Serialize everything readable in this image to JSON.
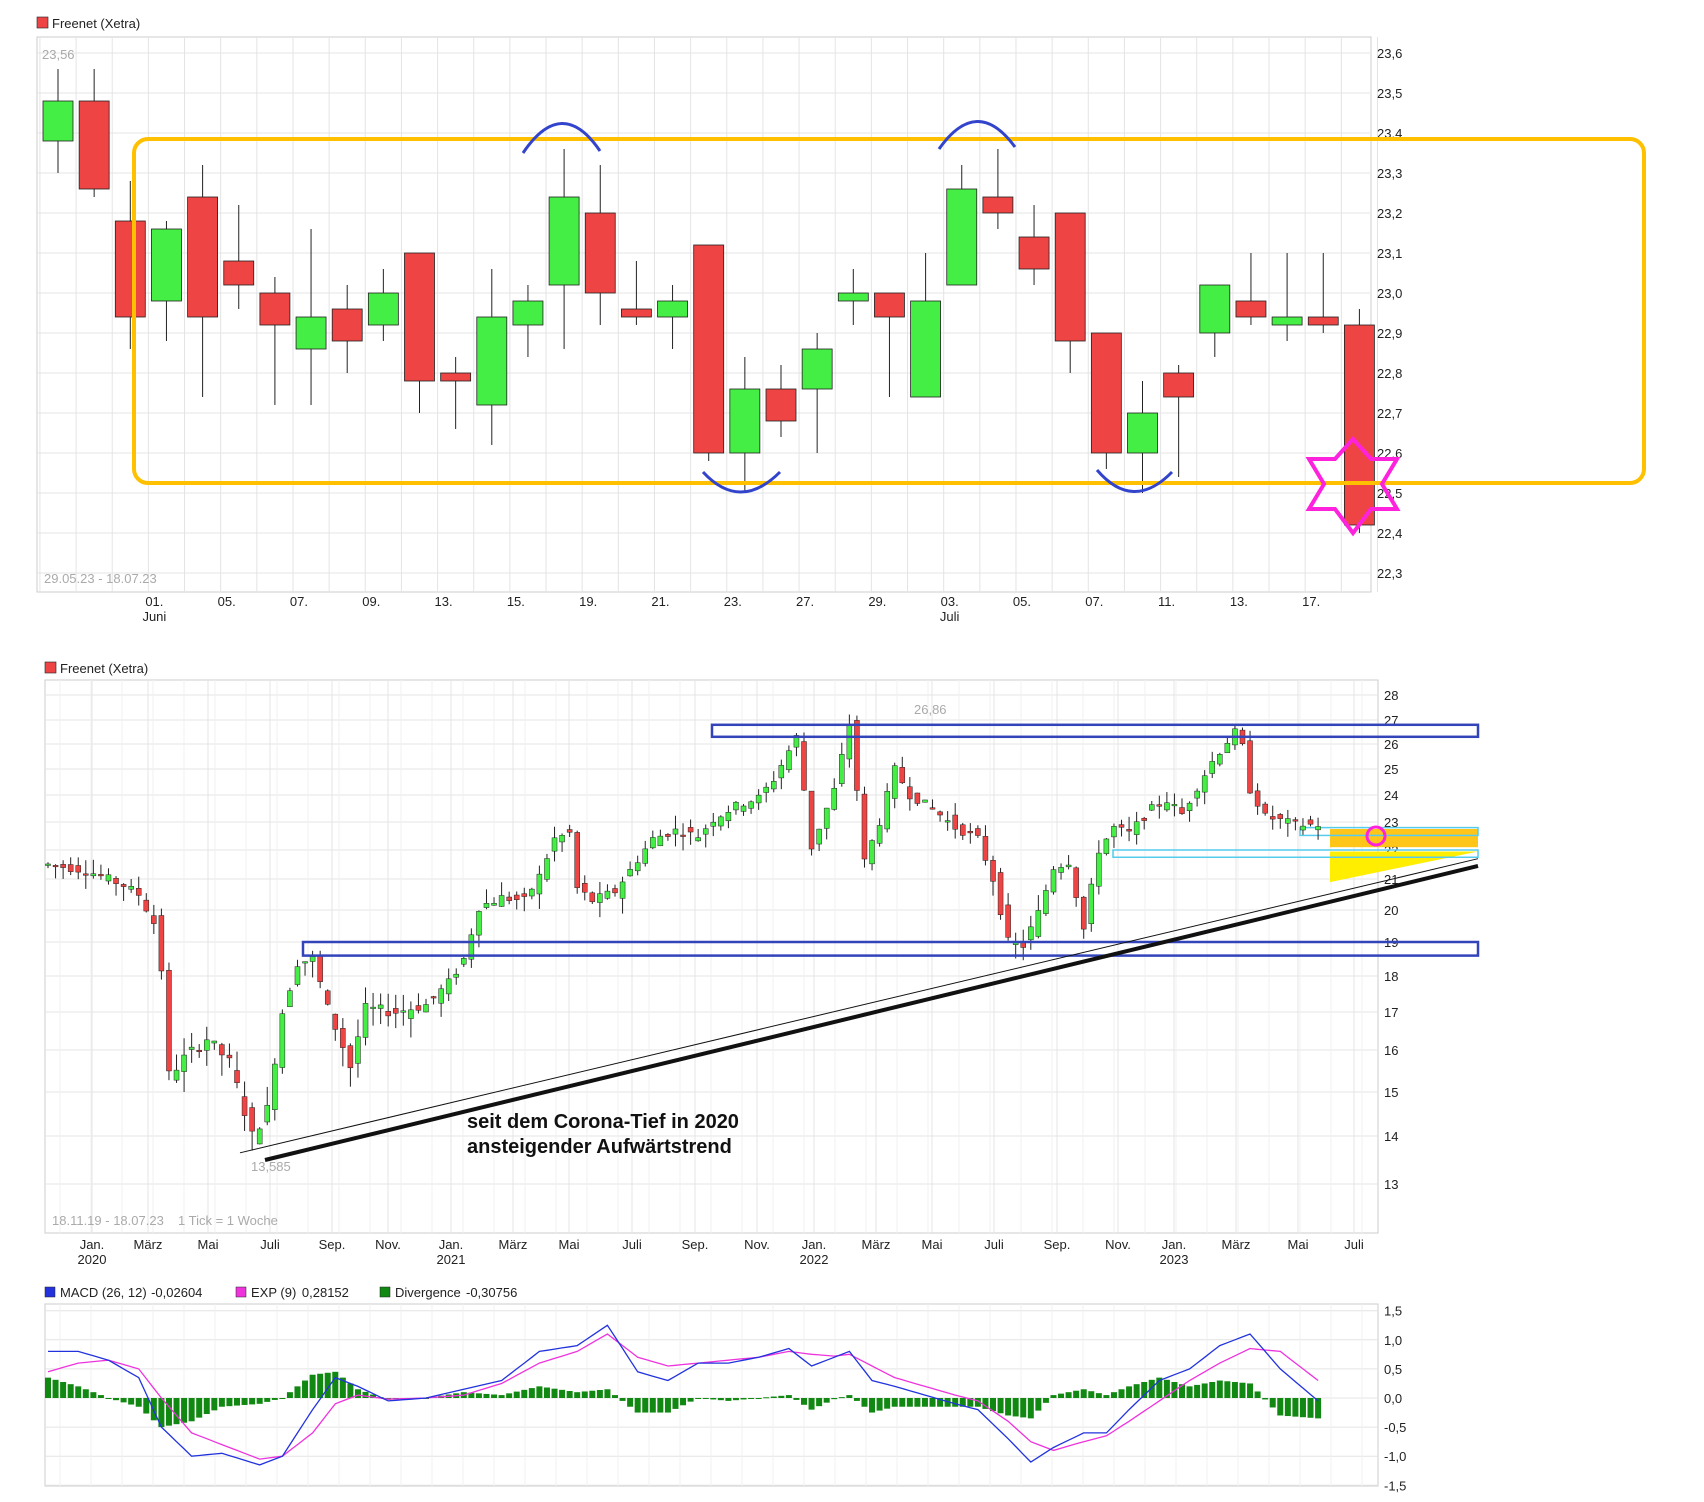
{
  "colors": {
    "up": "#44ee44",
    "down": "#ee4444",
    "grid": "#e4e4e4",
    "frame": "#cccccc",
    "range_box": "#ffc000",
    "arcs": "#3344cc",
    "star": "#ff22dd",
    "channel": "#3344bb",
    "cyan": "#55ccee",
    "trend": "#111111",
    "zone_orange": "#ffc000",
    "zone_yellow": "#ffee00",
    "macd": "#2233dd",
    "exp": "#ee33dd",
    "divergence": "#118811"
  },
  "chart_data": [
    {
      "type": "candlestick",
      "title": "Freenet (Xetra)",
      "period": "29.05.23 - 18.07.23",
      "max_label": "23,56",
      "ylim": [
        22.22,
        23.62
      ],
      "yticks": [
        "23,6",
        "23,5",
        "23,4",
        "23,3",
        "23,2",
        "23,1",
        "23,0",
        "22,9",
        "22,8",
        "22,7",
        "22,6",
        "22,5",
        "22,4",
        "22,3"
      ],
      "xticks": [
        {
          "i": 3,
          "label": "01.",
          "sub": "Juni"
        },
        {
          "i": 5,
          "label": "05."
        },
        {
          "i": 7,
          "label": "07."
        },
        {
          "i": 9,
          "label": "09."
        },
        {
          "i": 11,
          "label": "13."
        },
        {
          "i": 13,
          "label": "15."
        },
        {
          "i": 15,
          "label": "19."
        },
        {
          "i": 17,
          "label": "21."
        },
        {
          "i": 19,
          "label": "23."
        },
        {
          "i": 21,
          "label": "27."
        },
        {
          "i": 23,
          "label": "29."
        },
        {
          "i": 25,
          "label": "03.",
          "sub": "Juli"
        },
        {
          "i": 27,
          "label": "05."
        },
        {
          "i": 29,
          "label": "07."
        },
        {
          "i": 31,
          "label": "11."
        },
        {
          "i": 33,
          "label": "13."
        },
        {
          "i": 35,
          "label": "17."
        }
      ],
      "candles": [
        [
          23.38,
          23.48,
          23.56,
          23.3
        ],
        [
          23.48,
          23.26,
          23.56,
          23.24
        ],
        [
          23.18,
          22.94,
          23.28,
          22.86
        ],
        [
          22.98,
          23.16,
          23.18,
          22.88
        ],
        [
          23.24,
          22.94,
          23.32,
          22.74
        ],
        [
          23.08,
          23.02,
          23.22,
          22.96
        ],
        [
          23.0,
          22.92,
          23.04,
          22.72
        ],
        [
          22.86,
          22.94,
          23.16,
          22.72
        ],
        [
          22.96,
          22.88,
          23.02,
          22.8
        ],
        [
          22.92,
          23.0,
          23.06,
          22.88
        ],
        [
          23.1,
          22.78,
          23.1,
          22.7
        ],
        [
          22.8,
          22.78,
          22.84,
          22.66
        ],
        [
          22.72,
          22.94,
          23.06,
          22.62
        ],
        [
          22.92,
          22.98,
          23.02,
          22.84
        ],
        [
          23.02,
          23.24,
          23.36,
          22.86
        ],
        [
          23.2,
          23.0,
          23.32,
          22.92
        ],
        [
          22.96,
          22.94,
          23.08,
          22.92
        ],
        [
          22.94,
          22.98,
          23.02,
          22.86
        ],
        [
          23.12,
          22.6,
          23.12,
          22.58
        ],
        [
          22.6,
          22.76,
          22.84,
          22.5
        ],
        [
          22.76,
          22.68,
          22.82,
          22.64
        ],
        [
          22.76,
          22.86,
          22.9,
          22.6
        ],
        [
          22.98,
          23.0,
          23.06,
          22.92
        ],
        [
          23.0,
          22.94,
          23.0,
          22.74
        ],
        [
          22.74,
          22.98,
          23.1,
          22.74
        ],
        [
          23.02,
          23.26,
          23.32,
          23.02
        ],
        [
          23.24,
          23.2,
          23.36,
          23.16
        ],
        [
          23.14,
          23.06,
          23.22,
          23.02
        ],
        [
          23.2,
          22.88,
          23.2,
          22.8
        ],
        [
          22.9,
          22.6,
          22.9,
          22.56
        ],
        [
          22.6,
          22.7,
          22.78,
          22.5
        ],
        [
          22.8,
          22.74,
          22.82,
          22.54
        ],
        [
          22.9,
          23.02,
          23.02,
          22.84
        ],
        [
          22.98,
          22.94,
          23.1,
          22.92
        ],
        [
          22.92,
          22.94,
          23.1,
          22.88
        ],
        [
          22.94,
          22.92,
          23.1,
          22.9
        ],
        [
          22.92,
          22.42,
          22.96,
          22.4
        ]
      ]
    },
    {
      "type": "candlestick",
      "title": "Freenet (Xetra)",
      "period": "18.11.19 - 18.07.23",
      "interval": "1 Tick = 1 Woche",
      "max_label": "26,86",
      "min_label": "13,585",
      "annotation": [
        "seit dem Corona-Tief in 2020",
        "ansteigender Aufwärtstrend"
      ],
      "yticks": [
        28,
        27,
        26,
        25,
        24,
        23,
        22,
        21,
        20,
        19,
        18,
        17,
        16,
        15,
        14,
        13
      ],
      "xticks": [
        {
          "label": "Jan.",
          "sub": "2020"
        },
        {
          "label": "März"
        },
        {
          "label": "Mai"
        },
        {
          "label": "Juli"
        },
        {
          "label": "Sep."
        },
        {
          "label": "Nov."
        },
        {
          "label": "Jan.",
          "sub": "2021"
        },
        {
          "label": "März"
        },
        {
          "label": "Mai"
        },
        {
          "label": "Juli"
        },
        {
          "label": "Sep."
        },
        {
          "label": "Nov."
        },
        {
          "label": "Jan.",
          "sub": "2022"
        },
        {
          "label": "März"
        },
        {
          "label": "Mai"
        },
        {
          "label": "Juli"
        },
        {
          "label": "Sep."
        },
        {
          "label": "Nov."
        },
        {
          "label": "Jan.",
          "sub": "2023"
        },
        {
          "label": "März"
        },
        {
          "label": "Mai"
        },
        {
          "label": "Juli"
        }
      ],
      "close_path": [
        [
          0,
          21.5
        ],
        [
          5,
          21.3
        ],
        [
          10,
          20.8
        ],
        [
          12,
          20.5
        ],
        [
          14,
          19.6
        ],
        [
          15,
          18.2
        ],
        [
          16,
          15.4
        ],
        [
          18,
          15.8
        ],
        [
          21,
          16.3
        ],
        [
          24,
          15.7
        ],
        [
          27,
          14.0
        ],
        [
          29,
          14.6
        ],
        [
          31,
          17.0
        ],
        [
          33,
          18.4
        ],
        [
          35,
          18.5
        ],
        [
          37,
          17.1
        ],
        [
          40,
          15.6
        ],
        [
          42,
          17.1
        ],
        [
          46,
          17.0
        ],
        [
          50,
          17.2
        ],
        [
          53,
          17.8
        ],
        [
          55,
          18.5
        ],
        [
          57,
          20.1
        ],
        [
          60,
          20.4
        ],
        [
          63,
          20.3
        ],
        [
          65,
          21.1
        ],
        [
          67,
          22.4
        ],
        [
          69,
          22.6
        ],
        [
          70,
          20.7
        ],
        [
          72,
          20.3
        ],
        [
          75,
          20.6
        ],
        [
          77,
          21.3
        ],
        [
          80,
          22.4
        ],
        [
          83,
          22.7
        ],
        [
          86,
          22.5
        ],
        [
          88,
          23.1
        ],
        [
          91,
          23.6
        ],
        [
          94,
          23.9
        ],
        [
          96,
          24.6
        ],
        [
          99,
          26.3
        ],
        [
          101,
          22.1
        ],
        [
          102,
          22.8
        ],
        [
          104,
          24.2
        ],
        [
          106,
          26.8
        ],
        [
          108,
          21.6
        ],
        [
          110,
          23.0
        ],
        [
          112,
          25.0
        ],
        [
          114,
          24.0
        ],
        [
          117,
          23.5
        ],
        [
          120,
          22.8
        ],
        [
          123,
          22.4
        ],
        [
          125,
          21.0
        ],
        [
          127,
          19.0
        ],
        [
          129,
          18.9
        ],
        [
          131,
          19.9
        ],
        [
          133,
          21.4
        ],
        [
          135,
          21.6
        ],
        [
          137,
          19.4
        ],
        [
          139,
          22.0
        ],
        [
          141,
          22.8
        ],
        [
          143,
          22.6
        ],
        [
          146,
          23.5
        ],
        [
          148,
          23.8
        ],
        [
          150,
          23.3
        ],
        [
          152,
          24.3
        ],
        [
          154,
          25.3
        ],
        [
          156,
          26.1
        ],
        [
          157,
          26.5
        ],
        [
          158,
          25.9
        ],
        [
          159,
          24.2
        ],
        [
          161,
          23.2
        ],
        [
          164,
          23.0
        ],
        [
          166,
          22.9
        ],
        [
          168,
          22.9
        ]
      ],
      "channel_top": [
        26.3,
        26.8
      ],
      "channel_bottom": [
        18.6,
        19.0
      ],
      "resistance_zones": [
        [
          22.5,
          22.75
        ],
        [
          21.75,
          21.95
        ]
      ]
    },
    {
      "type": "macd",
      "legend": [
        {
          "name": "MACD (26, 12)",
          "value": "-0,02604",
          "color": "#2233dd"
        },
        {
          "name": "EXP (9)",
          "value": "0,28152",
          "color": "#ee33dd"
        },
        {
          "name": "Divergence",
          "value": "-0,30756",
          "color": "#118811"
        }
      ],
      "ylim": [
        -1.5,
        1.5
      ],
      "yticks": [
        "1,5",
        "1,0",
        "0,5",
        "0,0",
        "-0,5",
        "-1,0",
        "-1,5"
      ],
      "macd": [
        [
          0,
          0.8
        ],
        [
          4,
          0.8
        ],
        [
          8,
          0.65
        ],
        [
          12,
          0.35
        ],
        [
          15,
          -0.5
        ],
        [
          19,
          -1.0
        ],
        [
          23,
          -0.95
        ],
        [
          28,
          -1.15
        ],
        [
          31,
          -1.0
        ],
        [
          35,
          -0.2
        ],
        [
          38,
          0.35
        ],
        [
          41,
          0.2
        ],
        [
          45,
          -0.05
        ],
        [
          50,
          0.0
        ],
        [
          55,
          0.15
        ],
        [
          60,
          0.3
        ],
        [
          65,
          0.8
        ],
        [
          70,
          0.9
        ],
        [
          74,
          1.25
        ],
        [
          78,
          0.45
        ],
        [
          82,
          0.3
        ],
        [
          86,
          0.6
        ],
        [
          90,
          0.6
        ],
        [
          94,
          0.7
        ],
        [
          98,
          0.85
        ],
        [
          101,
          0.55
        ],
        [
          104,
          0.7
        ],
        [
          106,
          0.8
        ],
        [
          109,
          0.3
        ],
        [
          112,
          0.2
        ],
        [
          116,
          0.05
        ],
        [
          120,
          -0.1
        ],
        [
          123,
          -0.2
        ],
        [
          127,
          -0.7
        ],
        [
          130,
          -1.1
        ],
        [
          133,
          -0.85
        ],
        [
          137,
          -0.6
        ],
        [
          140,
          -0.6
        ],
        [
          143,
          -0.2
        ],
        [
          147,
          0.3
        ],
        [
          151,
          0.5
        ],
        [
          155,
          0.9
        ],
        [
          159,
          1.1
        ],
        [
          163,
          0.5
        ],
        [
          168,
          -0.05
        ]
      ],
      "exp": [
        [
          0,
          0.45
        ],
        [
          4,
          0.6
        ],
        [
          8,
          0.65
        ],
        [
          12,
          0.5
        ],
        [
          15,
          0.0
        ],
        [
          19,
          -0.6
        ],
        [
          23,
          -0.8
        ],
        [
          28,
          -1.05
        ],
        [
          31,
          -1.0
        ],
        [
          35,
          -0.6
        ],
        [
          38,
          -0.1
        ],
        [
          41,
          0.05
        ],
        [
          45,
          -0.02
        ],
        [
          50,
          0.0
        ],
        [
          55,
          0.05
        ],
        [
          60,
          0.25
        ],
        [
          65,
          0.6
        ],
        [
          70,
          0.8
        ],
        [
          74,
          1.1
        ],
        [
          78,
          0.7
        ],
        [
          82,
          0.55
        ],
        [
          86,
          0.6
        ],
        [
          90,
          0.65
        ],
        [
          94,
          0.7
        ],
        [
          98,
          0.8
        ],
        [
          101,
          0.75
        ],
        [
          104,
          0.72
        ],
        [
          106,
          0.75
        ],
        [
          109,
          0.55
        ],
        [
          112,
          0.35
        ],
        [
          116,
          0.2
        ],
        [
          120,
          0.05
        ],
        [
          123,
          -0.05
        ],
        [
          127,
          -0.4
        ],
        [
          130,
          -0.75
        ],
        [
          133,
          -0.9
        ],
        [
          137,
          -0.75
        ],
        [
          140,
          -0.65
        ],
        [
          143,
          -0.4
        ],
        [
          147,
          -0.05
        ],
        [
          151,
          0.3
        ],
        [
          155,
          0.6
        ],
        [
          159,
          0.85
        ],
        [
          163,
          0.8
        ],
        [
          168,
          0.3
        ]
      ]
    }
  ]
}
